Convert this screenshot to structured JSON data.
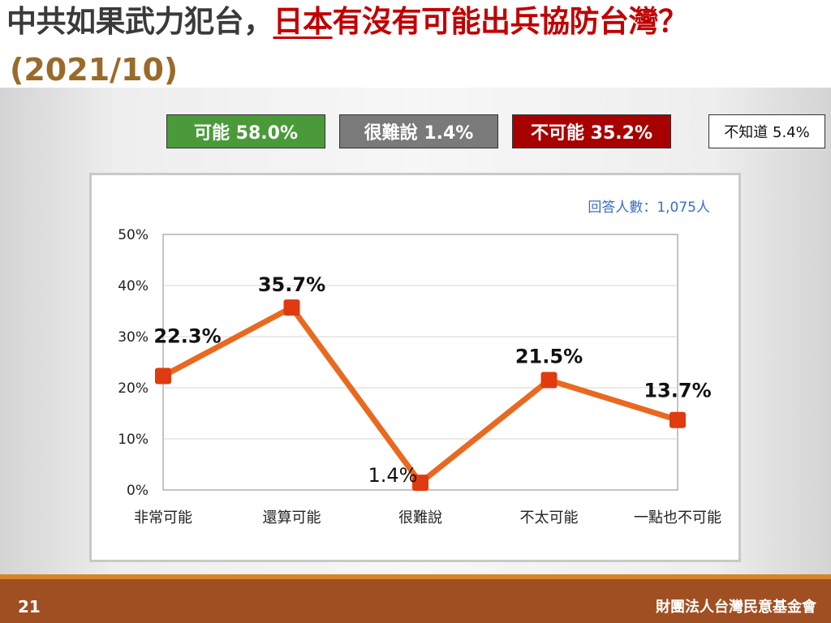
{
  "title": {
    "part1": "中共如果武力犯台，",
    "part2a": "日本",
    "part2b": "有沒有可能出兵協防台灣？"
  },
  "subtitle": "(2021/10)",
  "summary": {
    "possible": "可能 58.0%",
    "hard_to_say": "很難說 1.4%",
    "impossible": "不可能 35.2%",
    "unknown": "不知道 5.4%"
  },
  "respondents": "回答人數：1,075人",
  "footer": {
    "page": "21",
    "org": "財團法人台灣民意基金會"
  },
  "colors": {
    "line": "#e8691f",
    "marker": "#e03a10",
    "possible": "#4a9a3a",
    "hard": "#7a7a7a",
    "impossible": "#a80000"
  },
  "chart_data": {
    "type": "line",
    "categories": [
      "非常可能",
      "還算可能",
      "很難說",
      "不太可能",
      "一點也不可能"
    ],
    "values": [
      22.3,
      35.7,
      1.4,
      21.5,
      13.7
    ],
    "data_labels": [
      "22.3%",
      "35.7%",
      "1.4%",
      "21.5%",
      "13.7%"
    ],
    "y_ticks": [
      "0%",
      "10%",
      "20%",
      "30%",
      "40%",
      "50%"
    ],
    "ylim": [
      0,
      50
    ],
    "grid": true,
    "title": "",
    "xlabel": "",
    "ylabel": ""
  }
}
